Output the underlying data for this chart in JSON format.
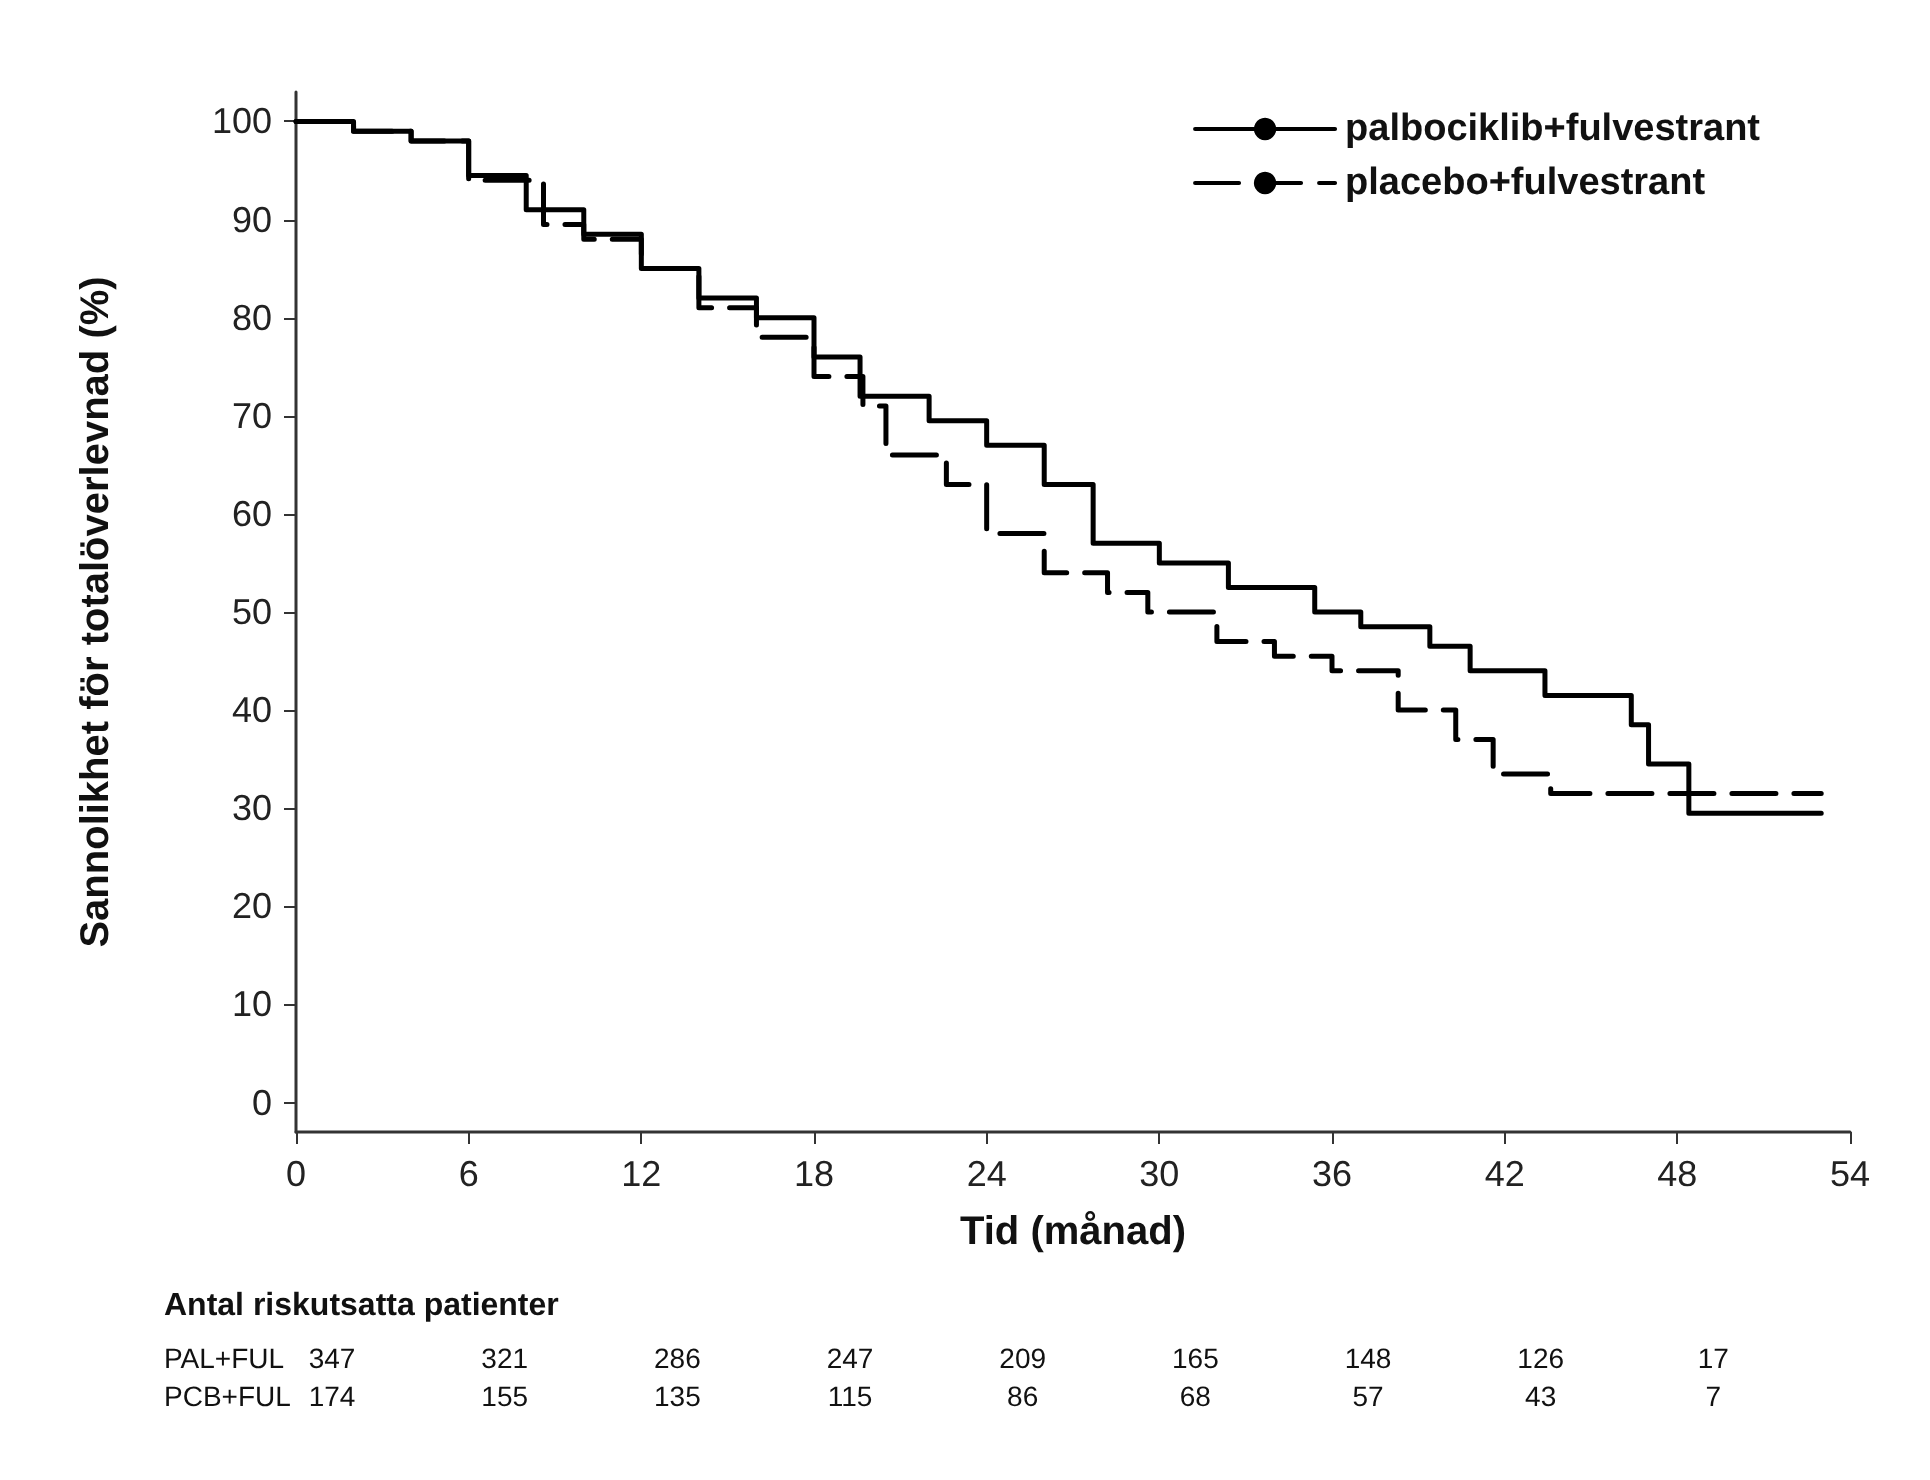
{
  "chart_data": {
    "type": "step",
    "xlabel": "Tid (månad)",
    "ylabel": "Sannolikhet för totalöverlevnad (%)",
    "xlim": [
      0,
      54
    ],
    "xticks": [
      0,
      6,
      12,
      18,
      24,
      30,
      36,
      42,
      48,
      54
    ],
    "ylim": [
      -3,
      103
    ],
    "yticks": [
      0,
      10,
      20,
      30,
      40,
      50,
      60,
      70,
      80,
      90,
      100
    ],
    "legend": "top right",
    "grid": false,
    "marker": "none",
    "series": [
      {
        "name": "palbociklib+fulvestrant",
        "color": "#000000",
        "line_style": "solid",
        "x": [
          0,
          2,
          4,
          6,
          8,
          10,
          12,
          14,
          16,
          18,
          19.6,
          22,
          24,
          26,
          27.7,
          30,
          32.4,
          35.4,
          37,
          39.4,
          40.8,
          43.4,
          46.4,
          47,
          48.4,
          53
        ],
        "values": [
          100,
          99,
          98,
          94.5,
          91,
          88.5,
          85,
          82,
          80,
          76,
          72,
          69.5,
          67,
          63,
          57,
          55,
          52.5,
          50,
          48.5,
          46.5,
          44,
          41.5,
          38.5,
          34.5,
          29.5,
          29.5
        ]
      },
      {
        "name": "placebo+fulvestrant",
        "color": "#000000",
        "line_style": "dashed",
        "x": [
          0,
          2,
          4,
          6,
          8.6,
          10,
          12,
          14,
          16,
          18,
          19.7,
          20.5,
          22.6,
          24,
          26,
          28.2,
          29.6,
          32,
          34,
          36,
          38.3,
          40.3,
          41.6,
          43.6,
          53
        ],
        "values": [
          100,
          99,
          98,
          94,
          89.5,
          88,
          85,
          81,
          78,
          74,
          71,
          66,
          63,
          58,
          54,
          52,
          50,
          47,
          45.5,
          44,
          40,
          37,
          33.5,
          31.5,
          31.5
        ]
      }
    ],
    "annotations": [
      "Antal riskutsatta patienter",
      "PAL+FUL",
      "347",
      "321",
      "286",
      "247",
      "209",
      "165",
      "148",
      "126",
      "17",
      "PCB+FUL",
      "174",
      "155",
      "135",
      "115",
      "86",
      "68",
      "57",
      "43",
      "7"
    ]
  }
}
